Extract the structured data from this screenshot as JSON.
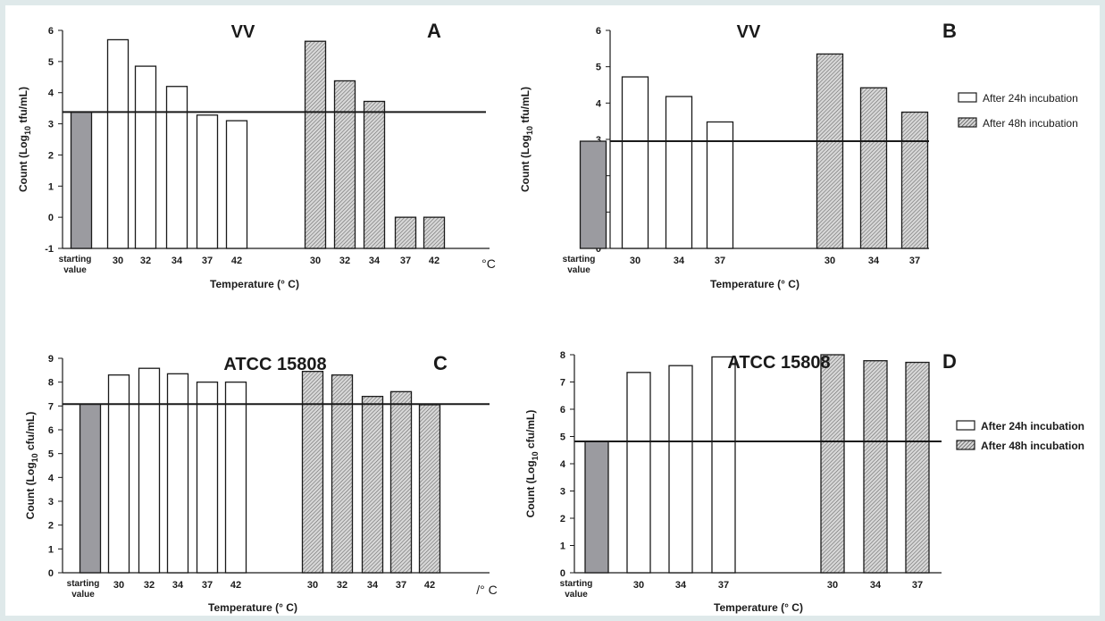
{
  "colors": {
    "page_border": "#dfe9ea",
    "starting_bar": "#9b9ba0",
    "white_bar": "#ffffff",
    "hatch_bar": "#cfcfcf",
    "ink": "#1a1a1a"
  },
  "chart_data": [
    {
      "type": "bar",
      "panel_letter": "A",
      "title": "VV",
      "ylabel_main": "Count (Log",
      "ylabel_sub": "10",
      "ylabel_end": " tfu/mL)",
      "xlabel": "Temperature (°  C)",
      "unit_note": "°C",
      "starting_label": [
        "starting",
        "value"
      ],
      "ylim": [
        -1,
        6
      ],
      "yticks": [
        -1,
        0,
        1,
        2,
        3,
        4,
        5,
        6
      ],
      "baseline": 3.38,
      "starting_value": 3.38,
      "categories": [
        "30",
        "32",
        "34",
        "37",
        "42"
      ],
      "series": [
        {
          "values": [
            5.7,
            4.85,
            4.2,
            3.28,
            3.1
          ]
        },
        {
          "values": [
            5.65,
            4.38,
            3.72,
            0,
            0
          ]
        }
      ]
    },
    {
      "type": "bar",
      "panel_letter": "B",
      "title": "VV",
      "ylabel_main": "Count (Log",
      "ylabel_sub": "10",
      "ylabel_end": " tfu/mL)",
      "xlabel": "Temperature (°  C)",
      "unit_note": "",
      "starting_label": [
        "starting",
        "value"
      ],
      "ylim": [
        0,
        6
      ],
      "yticks": [
        0,
        1,
        2,
        3,
        4,
        5,
        6
      ],
      "baseline": 2.95,
      "starting_value": 2.95,
      "categories": [
        "30",
        "34",
        "37"
      ],
      "series": [
        {
          "name": "After 24h incubation",
          "values": [
            4.72,
            4.18,
            3.48
          ]
        },
        {
          "name": "After 48h incubation",
          "values": [
            5.35,
            4.42,
            3.75
          ]
        }
      ],
      "legend": "right"
    },
    {
      "type": "bar",
      "panel_letter": "C",
      "title": "ATCC 15808",
      "ylabel_main": "Count (Log",
      "ylabel_sub": "10",
      "ylabel_end": " cfu/mL)",
      "xlabel": "Temperature (°  C)",
      "unit_note": "/° C",
      "starting_label": [
        "starting",
        "value"
      ],
      "ylim": [
        0,
        9
      ],
      "yticks": [
        0,
        1,
        2,
        3,
        4,
        5,
        6,
        7,
        8,
        9
      ],
      "baseline": 7.08,
      "starting_value": 7.08,
      "categories": [
        "30",
        "32",
        "34",
        "37",
        "42"
      ],
      "series": [
        {
          "values": [
            8.3,
            8.58,
            8.35,
            8.0,
            8.0
          ]
        },
        {
          "values": [
            8.45,
            8.3,
            7.4,
            7.6,
            7.05
          ]
        }
      ]
    },
    {
      "type": "bar",
      "panel_letter": "D",
      "title": "ATCC 15808",
      "ylabel_main": "Count (Log",
      "ylabel_sub": "10",
      "ylabel_end": " cfu/mL)",
      "xlabel": "Temperature (°  C)",
      "unit_note": "",
      "starting_label": [
        "starting",
        "value"
      ],
      "ylim": [
        0,
        8
      ],
      "yticks": [
        0,
        1,
        2,
        3,
        4,
        5,
        6,
        7,
        8
      ],
      "baseline": 4.82,
      "starting_value": 4.82,
      "categories": [
        "30",
        "34",
        "37"
      ],
      "series": [
        {
          "name": "After 24h incubation",
          "values": [
            7.35,
            7.6,
            7.92
          ]
        },
        {
          "name": "After 48h incubation",
          "values": [
            8.0,
            7.78,
            7.72
          ]
        }
      ],
      "legend": "right"
    }
  ]
}
